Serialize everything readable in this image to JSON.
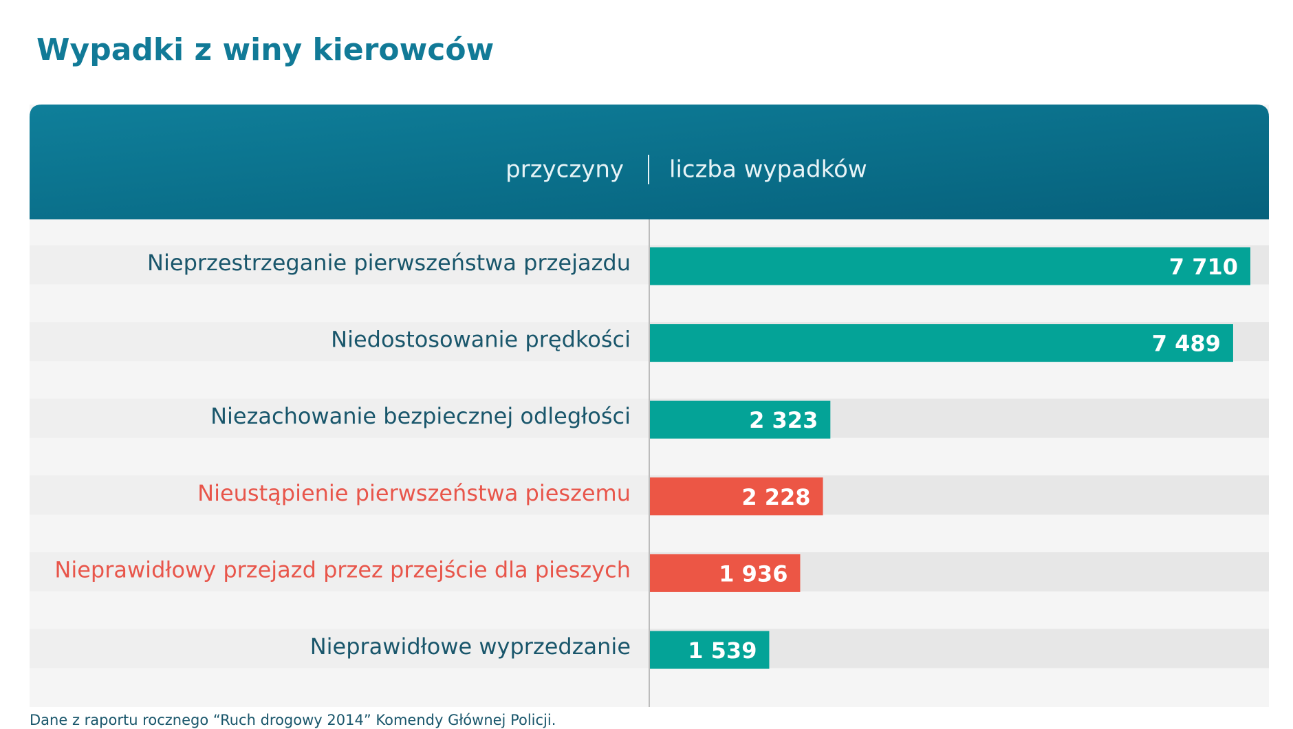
{
  "chart_data": {
    "type": "hbar",
    "title": "Wypadki z winy kierowców",
    "column_headers": [
      "przyczyny",
      "liczba wypadków"
    ],
    "categories": [
      "Nieprzestrzeganie pierwszeństwa przejazdu",
      "Niedostosowanie prędkości",
      "Niezachowanie bezpiecznej odległości",
      "Nieustąpienie pierwszeństwa pieszemu",
      "Nieprawidłowy przejazd przez przejście dla pieszych",
      "Nieprawidłowe wyprzedzanie"
    ],
    "values": [
      7710,
      7489,
      2323,
      2228,
      1936,
      1539
    ],
    "value_labels": [
      "7 710",
      "7 489",
      "2 323",
      "2 228",
      "1 936",
      "1 539"
    ],
    "colors": [
      "#04a397",
      "#04a397",
      "#04a397",
      "#ec5645",
      "#ec5645",
      "#04a397"
    ],
    "label_colors": [
      "#19566b",
      "#19566b",
      "#19566b",
      "#e8554a",
      "#e8554a",
      "#19566b"
    ],
    "source": "Dane z raportu rocznego “Ruch drogowy 2014”  Komendy Głównej Policji."
  }
}
